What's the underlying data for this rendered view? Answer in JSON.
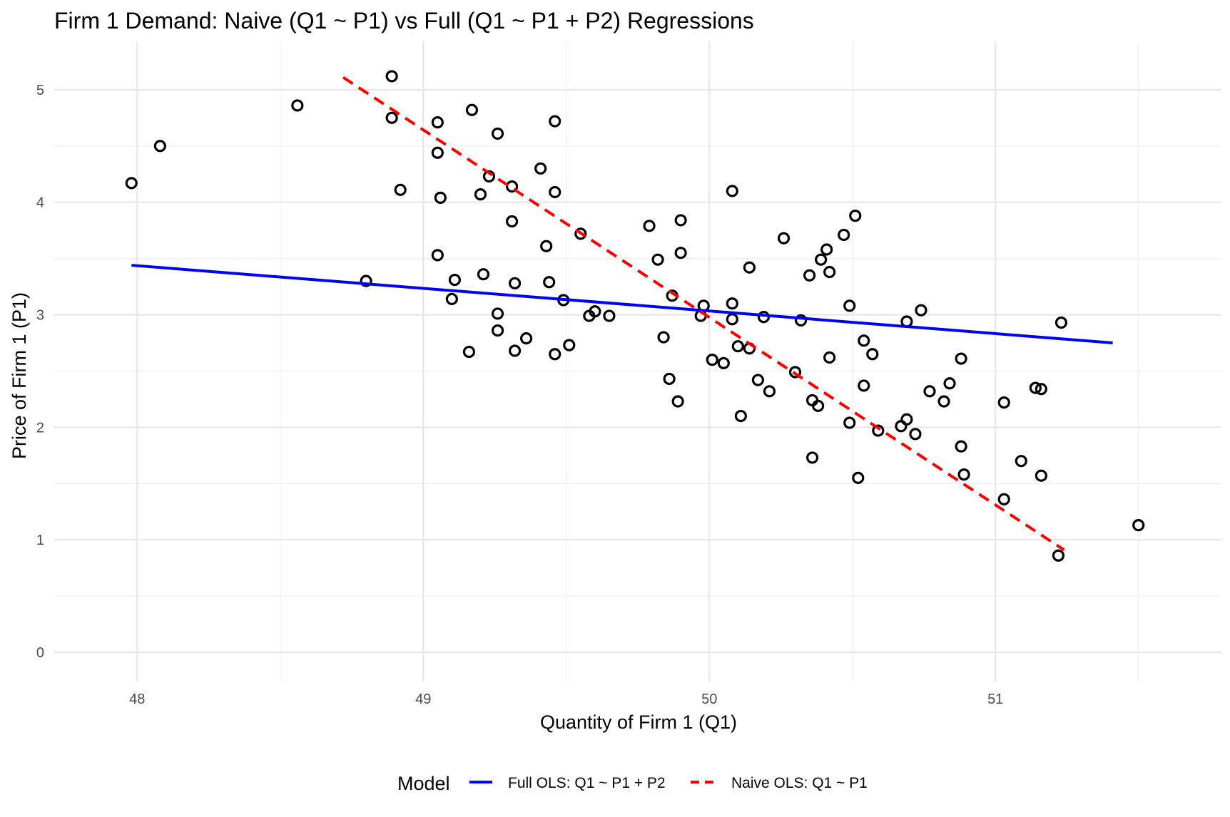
{
  "chart_data": {
    "type": "scatter",
    "title": "Firm 1 Demand: Naive (Q1 ~ P1) vs Full (Q1 ~ P1 + P2) Regressions",
    "xlabel": "Quantity of Firm 1 (Q1)",
    "ylabel": "Price of Firm 1 (P1)",
    "xlim": [
      47.71,
      51.79
    ],
    "ylim": [
      -0.26,
      5.43
    ],
    "x_ticks": [
      48,
      49,
      50,
      51
    ],
    "x_tick_labels": [
      "48",
      "49",
      "50",
      "51"
    ],
    "y_ticks": [
      0,
      1,
      2,
      3,
      4,
      5
    ],
    "y_tick_labels": [
      "0",
      "1",
      "2",
      "3",
      "4",
      "5"
    ],
    "grid": true,
    "legend": {
      "position": "bottom",
      "title": "Model",
      "entries": [
        {
          "label": "Full OLS: Q1 ~ P1 + P2",
          "color": "#0000ff",
          "style": "solid"
        },
        {
          "label": "Naive OLS: Q1 ~ P1",
          "color": "#ff0000",
          "style": "dashed"
        }
      ]
    },
    "series": [
      {
        "name": "Observations",
        "kind": "points",
        "marker": "open-circle",
        "color": "#000000",
        "points": [
          [
            47.98,
            4.17
          ],
          [
            48.08,
            4.5
          ],
          [
            48.56,
            4.86
          ],
          [
            48.8,
            3.3
          ],
          [
            48.89,
            5.12
          ],
          [
            48.89,
            4.75
          ],
          [
            48.92,
            4.11
          ],
          [
            49.05,
            4.71
          ],
          [
            49.05,
            4.44
          ],
          [
            49.06,
            4.04
          ],
          [
            49.05,
            3.53
          ],
          [
            49.11,
            3.31
          ],
          [
            49.1,
            3.14
          ],
          [
            49.16,
            2.67
          ],
          [
            49.17,
            4.82
          ],
          [
            49.2,
            4.07
          ],
          [
            49.21,
            3.36
          ],
          [
            49.23,
            4.23
          ],
          [
            49.26,
            4.61
          ],
          [
            49.26,
            3.01
          ],
          [
            49.26,
            2.86
          ],
          [
            49.31,
            4.14
          ],
          [
            49.31,
            3.83
          ],
          [
            49.32,
            3.28
          ],
          [
            49.32,
            2.68
          ],
          [
            49.36,
            2.79
          ],
          [
            49.41,
            4.3
          ],
          [
            49.43,
            3.61
          ],
          [
            49.44,
            3.29
          ],
          [
            49.46,
            4.72
          ],
          [
            49.46,
            4.09
          ],
          [
            49.46,
            2.65
          ],
          [
            49.49,
            3.13
          ],
          [
            49.51,
            2.73
          ],
          [
            49.55,
            3.72
          ],
          [
            49.58,
            2.99
          ],
          [
            49.6,
            3.03
          ],
          [
            49.65,
            2.99
          ],
          [
            49.79,
            3.79
          ],
          [
            49.82,
            3.49
          ],
          [
            49.84,
            2.8
          ],
          [
            49.86,
            2.43
          ],
          [
            49.87,
            3.17
          ],
          [
            49.89,
            2.23
          ],
          [
            49.9,
            3.84
          ],
          [
            49.9,
            3.55
          ],
          [
            49.97,
            2.99
          ],
          [
            49.98,
            3.08
          ],
          [
            50.01,
            2.6
          ],
          [
            50.05,
            2.57
          ],
          [
            50.08,
            4.1
          ],
          [
            50.08,
            3.1
          ],
          [
            50.08,
            2.96
          ],
          [
            50.1,
            2.72
          ],
          [
            50.11,
            2.1
          ],
          [
            50.14,
            3.42
          ],
          [
            50.14,
            2.7
          ],
          [
            50.17,
            2.42
          ],
          [
            50.19,
            2.98
          ],
          [
            50.21,
            2.32
          ],
          [
            50.26,
            3.68
          ],
          [
            50.3,
            2.49
          ],
          [
            50.32,
            2.95
          ],
          [
            50.35,
            3.35
          ],
          [
            50.36,
            2.24
          ],
          [
            50.36,
            1.73
          ],
          [
            50.38,
            2.19
          ],
          [
            50.39,
            3.49
          ],
          [
            50.41,
            3.58
          ],
          [
            50.42,
            3.38
          ],
          [
            50.42,
            2.62
          ],
          [
            50.47,
            3.71
          ],
          [
            50.49,
            3.08
          ],
          [
            50.49,
            2.04
          ],
          [
            50.51,
            3.88
          ],
          [
            50.52,
            1.55
          ],
          [
            50.54,
            2.77
          ],
          [
            50.54,
            2.37
          ],
          [
            50.57,
            2.65
          ],
          [
            50.59,
            1.97
          ],
          [
            50.67,
            2.01
          ],
          [
            50.69,
            2.94
          ],
          [
            50.69,
            2.07
          ],
          [
            50.72,
            1.94
          ],
          [
            50.74,
            3.04
          ],
          [
            50.77,
            2.32
          ],
          [
            50.82,
            2.23
          ],
          [
            50.84,
            2.39
          ],
          [
            50.88,
            2.61
          ],
          [
            50.88,
            1.83
          ],
          [
            50.89,
            1.58
          ],
          [
            51.03,
            2.22
          ],
          [
            51.03,
            1.36
          ],
          [
            51.09,
            1.7
          ],
          [
            51.14,
            2.35
          ],
          [
            51.16,
            2.34
          ],
          [
            51.16,
            1.57
          ],
          [
            51.23,
            2.93
          ],
          [
            51.22,
            0.86
          ],
          [
            51.5,
            1.13
          ]
        ]
      },
      {
        "name": "Full OLS: Q1 ~ P1 + P2",
        "kind": "line",
        "color": "#0000ff",
        "style": "solid",
        "x": [
          47.98,
          51.41
        ],
        "y": [
          3.44,
          2.75
        ]
      },
      {
        "name": "Naive OLS: Q1 ~ P1",
        "kind": "line",
        "color": "#ff0000",
        "style": "dashed",
        "x": [
          48.72,
          51.24
        ],
        "y": [
          5.11,
          0.91
        ]
      }
    ]
  }
}
